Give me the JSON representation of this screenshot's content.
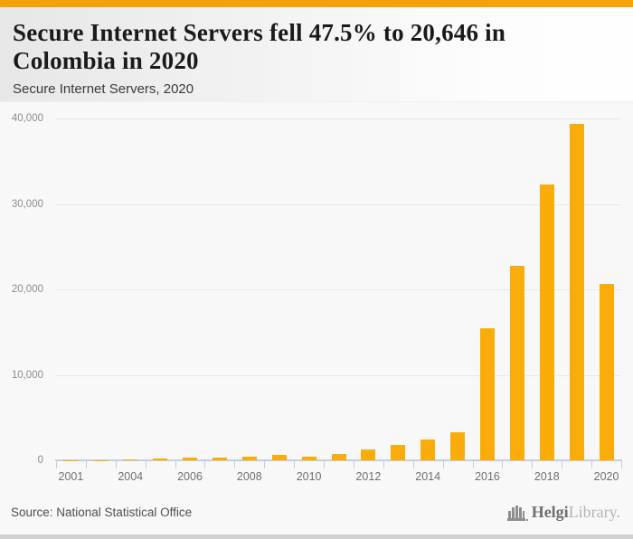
{
  "header": {
    "title": "Secure Internet Servers fell 47.5% to 20,646 in Colombia in 2020",
    "subtitle": "Secure Internet Servers, 2020"
  },
  "footer": {
    "source": "Source: National Statistical Office",
    "logo": {
      "icon": "helgi-logo-icon",
      "brand_bold": "Helgi",
      "brand_light": "Library."
    }
  },
  "colors": {
    "accent_top_bar": "#F2A30A",
    "bar": "#FAAD0A",
    "axis": "#C7CDE1",
    "gridline": "#E8E8E8",
    "background": "#F8F8F8",
    "bottom_strip": "#D1D1D1"
  },
  "chart_data": {
    "type": "bar",
    "title": "Secure Internet Servers, 2020",
    "xlabel": "",
    "ylabel": "",
    "categories": [
      "2001",
      "2003",
      "2004",
      "2005",
      "2006",
      "2007",
      "2008",
      "2009",
      "2010",
      "2011",
      "2012",
      "2013",
      "2014",
      "2015",
      "2016",
      "2017",
      "2018",
      "2019",
      "2020"
    ],
    "values": [
      10,
      25,
      60,
      180,
      320,
      350,
      470,
      600,
      460,
      690,
      1300,
      1850,
      2470,
      3280,
      15400,
      22700,
      32300,
      39326,
      20646
    ],
    "labeled_indices": [
      0,
      2,
      4,
      6,
      8,
      10,
      12,
      14,
      16,
      18
    ],
    "x_tick_labels_shown": [
      "2001",
      "2004",
      "2006",
      "2008",
      "2010",
      "2012",
      "2014",
      "2016",
      "2018",
      "2020"
    ],
    "y_ticks": [
      {
        "value": 0,
        "label": "0"
      },
      {
        "value": 10000,
        "label": "10,000"
      },
      {
        "value": 20000,
        "label": "20,000"
      },
      {
        "value": 30000,
        "label": "30,000"
      },
      {
        "value": 40000,
        "label": "40,000"
      }
    ],
    "ylim": [
      0,
      40000
    ],
    "grid": "horizontal",
    "legend": "none",
    "bar_color": "#FAAD0A"
  }
}
